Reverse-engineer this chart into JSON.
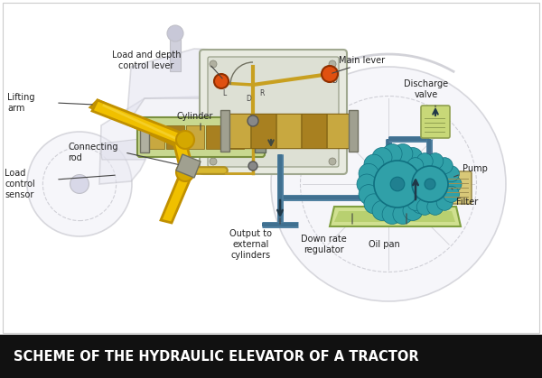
{
  "title": "SCHEME OF THE HYDRAULIC ELEVATOR OF A TRACTOR",
  "title_bg": "#111111",
  "title_color": "#ffffff",
  "title_fontsize": 10.5,
  "bg_color": "#ffffff",
  "labels": {
    "lifting_arm": "Lifting\narm",
    "connecting_rod": "Connecting\nrod",
    "load_control": "Load\ncontrol\nsensor",
    "cylinder": "Cylinder",
    "output_ext": "Output to\nexternal\ncylinders",
    "down_rate": "Down rate\nregulator",
    "oil_pan": "Oil pan",
    "filter": "Filter",
    "pump": "Pump",
    "discharge": "Discharge\nvalve",
    "main_lever": "Main lever",
    "load_depth": "Load and depth\ncontrol lever"
  },
  "colors": {
    "tractor_outline": "#c0c0c8",
    "tractor_body_fill": "#e8e8f0",
    "yellow_arm": "#f0c000",
    "yellow_arm_stroke": "#c09000",
    "yellow_arm_dark": "#d4a800",
    "hydraulic_box_fill": "#e8eedd",
    "hydraulic_box_stroke": "#8aaa60",
    "cylinder_green": "#c8d890",
    "cylinder_green_stroke": "#7a9040",
    "cylinder_gold1": "#c8a840",
    "cylinder_gold2": "#a88020",
    "cylinder_gold_stroke": "#806010",
    "pipe_blue": "#5080a0",
    "pipe_blue2": "#407090",
    "gear_teal": "#30a0a8",
    "gear_dark": "#208090",
    "gear_stroke": "#107080",
    "oil_pan_fill": "#d0e090",
    "oil_pan_stroke": "#80a040",
    "filter_fill": "#d8c878",
    "filter_stroke": "#a09050",
    "valve_fill": "#c8d878",
    "valve_stroke": "#90a050",
    "lever_gold": "#c8a020",
    "ball_orange": "#e05010",
    "ball_stroke": "#903000",
    "connector_gray": "#909090",
    "text_color": "#222222",
    "label_line": "#444444",
    "pivot_gray": "#888888",
    "pivot_dark": "#555555"
  }
}
